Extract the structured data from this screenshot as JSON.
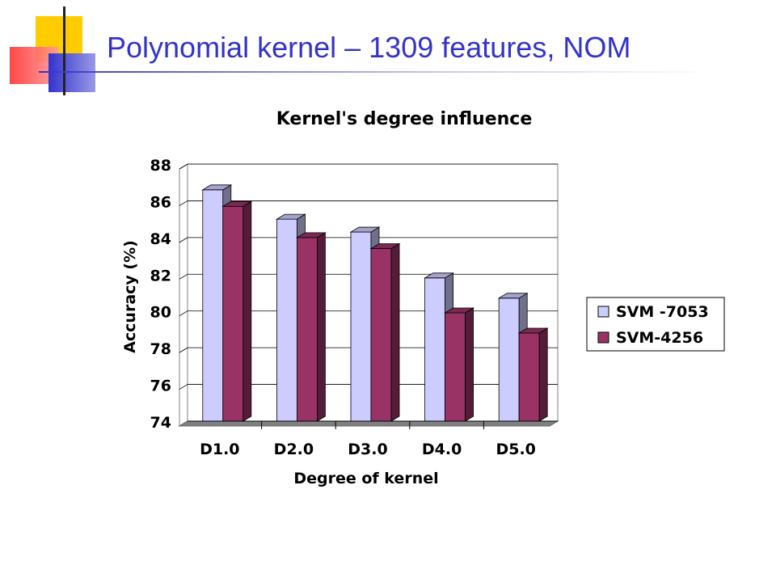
{
  "slide": {
    "title": "Polynomial kernel – 1309 features, NOM"
  },
  "colors": {
    "title": "#3333cc",
    "series1": "#ccccff",
    "series2": "#993366",
    "floor": "#808080"
  },
  "chart_data": {
    "type": "bar",
    "title": "Kernel's degree influence",
    "xlabel": "Degree of kernel",
    "ylabel": "Accuracy (%)",
    "categories": [
      "D1.0",
      "D2.0",
      "D3.0",
      "D4.0",
      "D5.0"
    ],
    "ylim": [
      74,
      88
    ],
    "yticks": [
      74,
      76,
      78,
      80,
      82,
      84,
      86,
      88
    ],
    "grid": true,
    "legend": "right",
    "series": [
      {
        "name": "SVM -7053",
        "values": [
          86.6,
          85.0,
          84.3,
          81.8,
          80.7
        ]
      },
      {
        "name": "SVM-4256",
        "values": [
          85.7,
          84.0,
          83.4,
          79.9,
          78.8
        ]
      }
    ]
  }
}
